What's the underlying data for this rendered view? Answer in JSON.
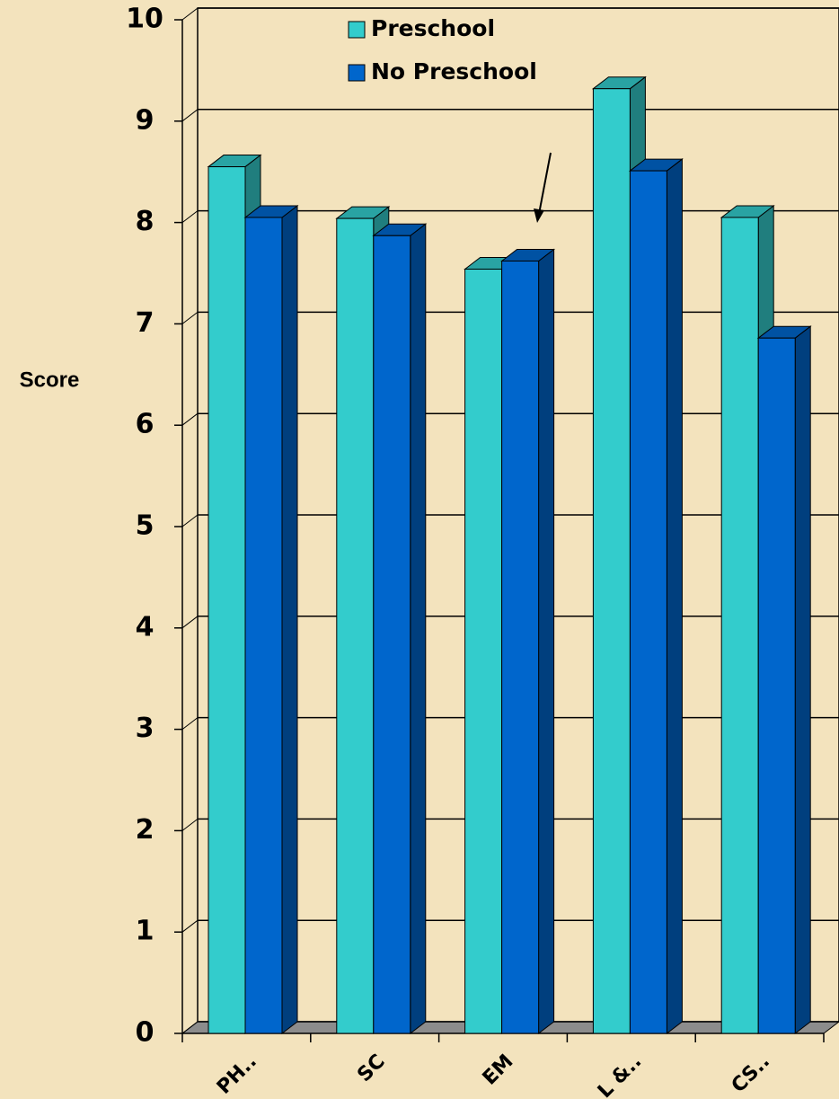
{
  "chart_data": {
    "type": "bar3d",
    "y_label": "Score",
    "categories": [
      "PH..",
      "SC",
      "EM",
      "L &..",
      "CS.."
    ],
    "series": [
      {
        "name": "Preschool",
        "color": "#33cccc",
        "values": [
          8.55,
          8.04,
          7.54,
          9.32,
          8.05
        ]
      },
      {
        "name": "No Preschool",
        "color": "#0066cc",
        "values": [
          8.05,
          7.87,
          7.62,
          8.51,
          6.86
        ]
      }
    ],
    "ylim": [
      0,
      10
    ],
    "yticks": [
      0,
      1,
      2,
      3,
      4,
      5,
      6,
      7,
      8,
      9,
      10
    ],
    "grid": true
  }
}
